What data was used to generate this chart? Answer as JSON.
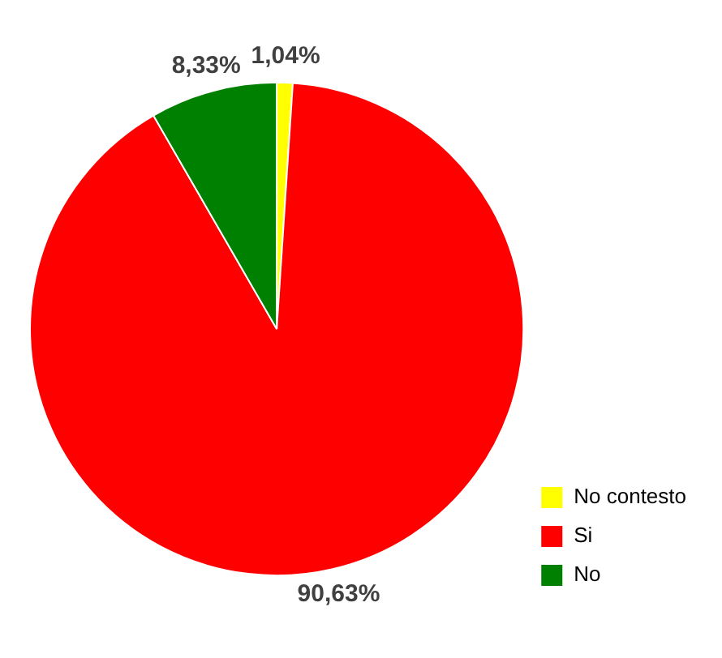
{
  "chart_data": {
    "type": "pie",
    "categories": [
      "No contesto",
      "Si",
      "No"
    ],
    "values": [
      1.04,
      90.63,
      8.33
    ],
    "colors": [
      "#ffff00",
      "#ff0000",
      "#008000"
    ],
    "value_labels": [
      "1,04%",
      "90,63%",
      "8,33%"
    ],
    "legend": "bottom right"
  }
}
